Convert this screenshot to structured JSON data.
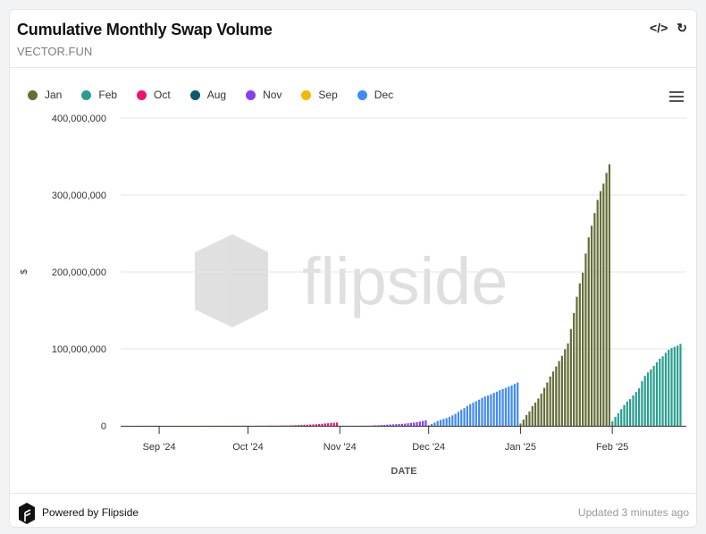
{
  "header": {
    "title": "Cumulative Monthly Swap Volume",
    "subtitle": "VECTOR.FUN",
    "embed_icon": "code-icon",
    "refresh_icon": "refresh-icon"
  },
  "footer": {
    "powered_by": "Powered by Flipside",
    "updated": "Updated 3 minutes ago"
  },
  "watermark": "flipside",
  "chart_data": {
    "type": "bar",
    "xlabel": "DATE",
    "ylabel": "$",
    "ylim": [
      0,
      400000000
    ],
    "xlim": [
      "2024-08-19",
      "2025-02-26"
    ],
    "yticks": [
      "0",
      "100,000,000",
      "200,000,000",
      "300,000,000",
      "400,000,000"
    ],
    "xticks": [
      {
        "label": "Sep '24",
        "date": "2024-09-01"
      },
      {
        "label": "Oct '24",
        "date": "2024-10-01"
      },
      {
        "label": "Nov '24",
        "date": "2024-11-01"
      },
      {
        "label": "Dec '24",
        "date": "2024-12-01"
      },
      {
        "label": "Jan '25",
        "date": "2025-01-01"
      },
      {
        "label": "Feb '25",
        "date": "2025-02-01"
      }
    ],
    "grid": true,
    "legend": "top-left",
    "value_unit": "millions",
    "series": [
      {
        "name": "Jan",
        "color": "#656d38",
        "start": "2025-01-01",
        "values": [
          3,
          8.1,
          13.9,
          18.5,
          25.5,
          30.1,
          35.5,
          41.7,
          49.4,
          56.3,
          64,
          70.6,
          77.2,
          84.1,
          91,
          99.5,
          107,
          125.8,
          146.6,
          167.8,
          185.2,
          199,
          224,
          245,
          260,
          276.6,
          293.6,
          305,
          314.8,
          328.7,
          340
        ]
      },
      {
        "name": "Feb",
        "color": "#2a9d8f",
        "start": "2025-02-01",
        "values": [
          5.8,
          11.6,
          16.2,
          21.6,
          27,
          31.6,
          34.7,
          39.4,
          44,
          48.6,
          57.9,
          64.8,
          69.4,
          73.3,
          77.9,
          82.5,
          87.2,
          90.3,
          94.9,
          98.8,
          101,
          102.6,
          104.2,
          106.5
        ]
      },
      {
        "name": "Oct",
        "color": "#f0116c",
        "start": "2024-10-01",
        "values": [
          0.1,
          0.1,
          0.1,
          0.15,
          0.2,
          0.2,
          0.2,
          0.25,
          0.3,
          0.3,
          0.3,
          0.35,
          0.4,
          0.4,
          0.5,
          0.6,
          0.8,
          1.0,
          1.1,
          1.3,
          1.4,
          1.6,
          1.8,
          2.0,
          2.3,
          2.6,
          3.0,
          3.3,
          3.6,
          3.9,
          4.2
        ]
      },
      {
        "name": "Aug",
        "color": "#0b5b6b",
        "start": "2024-08-20",
        "values": [
          0.02,
          0.02,
          0.03,
          0.03,
          0.04,
          0.04,
          0.05,
          0.05,
          0.06,
          0.06,
          0.07,
          0.07
        ]
      },
      {
        "name": "Nov",
        "color": "#8a3cf0",
        "start": "2024-11-01",
        "values": [
          0.1,
          0.1,
          0.1,
          0.1,
          0.1,
          0.1,
          0.1,
          0.15,
          0.2,
          0.2,
          0.3,
          0.4,
          0.6,
          0.8,
          1.0,
          1.2,
          1.5,
          1.7,
          1.9,
          2.1,
          2.3,
          2.5,
          2.8,
          3.2,
          3.6,
          4.1,
          4.8,
          5.5,
          6.2,
          7.0
        ]
      },
      {
        "name": "Sep",
        "color": "#f5b800",
        "start": "2024-09-01",
        "values": [
          0.05,
          0.05,
          0.05,
          0.06,
          0.06,
          0.07,
          0.07,
          0.08,
          0.08,
          0.09,
          0.09,
          0.1,
          0.1,
          0.11,
          0.12,
          0.13,
          0.14,
          0.15,
          0.16,
          0.17,
          0.18,
          0.2,
          0.22,
          0.24,
          0.26,
          0.28,
          0.3,
          0.32,
          0.34,
          0.36
        ]
      },
      {
        "name": "Dec",
        "color": "#3f8af7",
        "start": "2024-12-01",
        "values": [
          0.8,
          2.3,
          4.2,
          6.2,
          7.7,
          8.9,
          10,
          11.6,
          13.5,
          15.4,
          18.1,
          20.8,
          23.1,
          25.8,
          28.2,
          30.1,
          32,
          34,
          36.3,
          38.2,
          39.3,
          40.9,
          42.8,
          44.4,
          46.3,
          47.8,
          49.4,
          50.9,
          52.5,
          54.4,
          56.4
        ]
      }
    ]
  }
}
